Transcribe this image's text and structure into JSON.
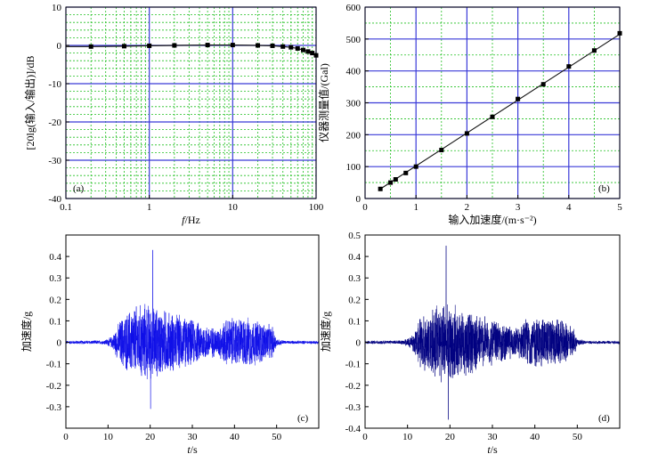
{
  "chart_data": [
    {
      "id": "a",
      "type": "line",
      "panel_label": "(a)",
      "xlabel_italic": "f",
      "xlabel_rest": "/Hz",
      "ylabel": "[20lg(输入/输出)]/dB",
      "xscale": "log",
      "xlim": [
        0.1,
        100
      ],
      "ylim": [
        -40,
        10
      ],
      "xticks": [
        0.1,
        1,
        10,
        100
      ],
      "xtick_labels": [
        "0.1",
        "1",
        "10",
        "100"
      ],
      "yticks": [
        10,
        0,
        -10,
        -20,
        -30,
        -40
      ],
      "ytick_labels": [
        "10",
        "0",
        "-10",
        "-20",
        "-30",
        "-40"
      ],
      "grid": true,
      "x": [
        0.2,
        0.5,
        1,
        2,
        5,
        10,
        20,
        30,
        40,
        50,
        60,
        70,
        80,
        90,
        100
      ],
      "y": [
        -0.3,
        -0.2,
        -0.1,
        0.0,
        0.1,
        0.1,
        0.0,
        -0.1,
        -0.3,
        -0.5,
        -0.8,
        -1.2,
        -1.6,
        -2.0,
        -2.6
      ]
    },
    {
      "id": "b",
      "type": "scatter",
      "panel_label": "(b)",
      "xlabel": "输入加速度/(m·s⁻²)",
      "ylabel": "仪器测量值/(Gal)",
      "xlim": [
        0,
        5
      ],
      "ylim": [
        0,
        600
      ],
      "xticks": [
        0,
        1,
        2,
        3,
        4,
        5
      ],
      "xtick_labels": [
        "0",
        "1",
        "2",
        "3",
        "4",
        "5"
      ],
      "yticks": [
        0,
        100,
        200,
        300,
        400,
        500,
        600
      ],
      "ytick_labels": [
        "0",
        "100",
        "200",
        "300",
        "400",
        "500",
        "600"
      ],
      "grid": true,
      "x": [
        0.3,
        0.5,
        0.6,
        0.8,
        1.0,
        1.5,
        2.0,
        2.5,
        3.0,
        3.5,
        4.0,
        4.5,
        5.0
      ],
      "y": [
        30,
        50,
        60,
        80,
        100,
        152,
        204,
        256,
        312,
        358,
        414,
        464,
        518
      ],
      "fit": [
        [
          0.3,
          30
        ],
        [
          5.0,
          515
        ]
      ]
    },
    {
      "id": "c",
      "type": "line",
      "panel_label": "(c)",
      "xlabel_italic": "t",
      "xlabel_rest": "/s",
      "ylabel": "加速度/g",
      "xlim": [
        0,
        60
      ],
      "ylim": [
        -0.4,
        0.5
      ],
      "xticks": [
        0,
        10,
        20,
        30,
        40,
        50
      ],
      "xtick_labels": [
        "0",
        "10",
        "20",
        "30",
        "40",
        "50"
      ],
      "yticks": [
        0.4,
        0.3,
        0.2,
        0.1,
        0,
        -0.1,
        -0.2,
        -0.3
      ],
      "ytick_labels": [
        "0.4",
        "0.3",
        "0.2",
        "0.1",
        "0",
        "-0.1",
        "-0.2",
        "-0.3"
      ],
      "color": "#1010e8",
      "duration": 60,
      "envelope_t": [
        0,
        9,
        11,
        13,
        16,
        19,
        21,
        24,
        28,
        33,
        36,
        38,
        42,
        46,
        49,
        50,
        52,
        60
      ],
      "envelope_a": [
        0.008,
        0.01,
        0.03,
        0.12,
        0.18,
        0.2,
        0.18,
        0.16,
        0.13,
        0.09,
        0.07,
        0.12,
        0.13,
        0.11,
        0.08,
        0.02,
        0.008,
        0.008
      ],
      "peak_t": 20.6,
      "peak_a": 0.43,
      "min_t": 20.1,
      "min_a": -0.31
    },
    {
      "id": "d",
      "type": "line",
      "panel_label": "(d)",
      "xlabel_italic": "t",
      "xlabel_rest": "/s",
      "ylabel": "加速度/g",
      "xlim": [
        0,
        60
      ],
      "ylim": [
        -0.4,
        0.5
      ],
      "xticks": [
        0,
        10,
        20,
        30,
        40,
        50
      ],
      "xtick_labels": [
        "0",
        "10",
        "20",
        "30",
        "40",
        "50"
      ],
      "yticks": [
        0.5,
        0.4,
        0.3,
        0.2,
        0.1,
        0,
        -0.1,
        -0.2,
        -0.3,
        -0.4
      ],
      "ytick_labels": [
        "0.5",
        "0.4",
        "0.3",
        "0.2",
        "0.1",
        "0",
        "-0.1",
        "-0.2",
        "-0.3",
        "-0.4"
      ],
      "color": "#000080",
      "duration": 60,
      "envelope_t": [
        0,
        9,
        11,
        13,
        16,
        19,
        21,
        24,
        28,
        33,
        36,
        38,
        42,
        46,
        49,
        50,
        52,
        60
      ],
      "envelope_a": [
        0.008,
        0.01,
        0.03,
        0.12,
        0.18,
        0.2,
        0.18,
        0.16,
        0.13,
        0.09,
        0.07,
        0.12,
        0.13,
        0.11,
        0.08,
        0.02,
        0.008,
        0.008
      ],
      "peak_t": 19.1,
      "peak_a": 0.45,
      "min_t": 19.6,
      "min_a": -0.36
    }
  ]
}
